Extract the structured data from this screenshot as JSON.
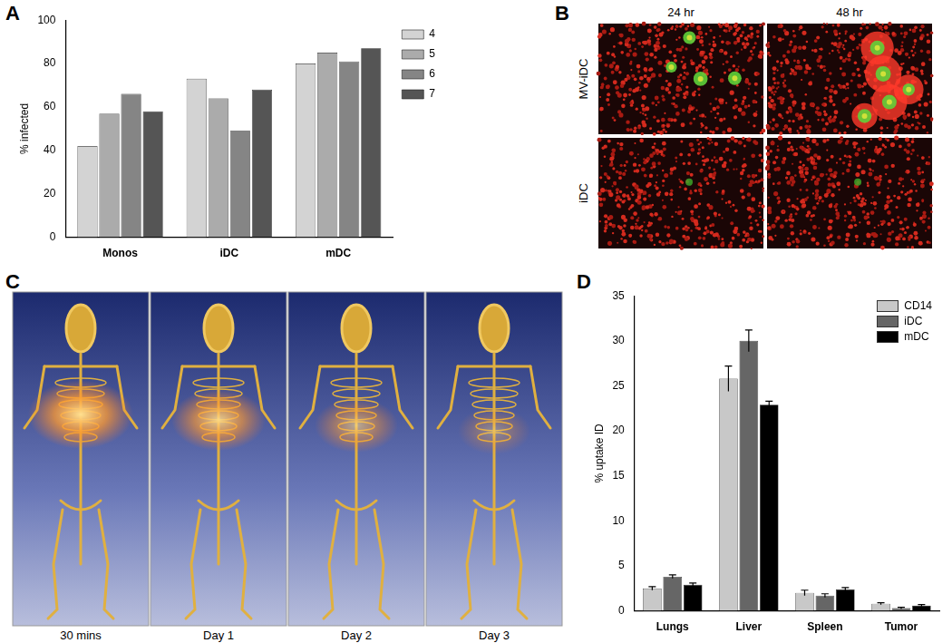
{
  "panel_labels": [
    "A",
    "B",
    "C",
    "D"
  ],
  "chart_data": [
    {
      "type": "bar",
      "categories": [
        "Monos",
        "iDC",
        "mDC"
      ],
      "y_label": "% infected",
      "ylim": [
        0,
        100
      ],
      "yticks": [
        0,
        20,
        40,
        60,
        80,
        100
      ],
      "grid": false,
      "legend": "right",
      "series": [
        {
          "name": "4",
          "color": "#d3d3d3",
          "values": [
            42,
            73,
            80
          ]
        },
        {
          "name": "5",
          "color": "#ababab",
          "values": [
            57,
            64,
            85
          ]
        },
        {
          "name": "6",
          "color": "#858585",
          "values": [
            66,
            49,
            81
          ]
        },
        {
          "name": "7",
          "color": "#555555",
          "values": [
            58,
            68,
            87
          ]
        }
      ]
    },
    {
      "type": "bar",
      "categories": [
        "Lungs",
        "Liver",
        "Spleen",
        "Tumor"
      ],
      "y_label": "% uptake ID",
      "ylim": [
        0,
        35
      ],
      "yticks": [
        0,
        5,
        10,
        15,
        20,
        25,
        30,
        35
      ],
      "grid": false,
      "legend": "upper right",
      "series": [
        {
          "name": "CD14",
          "color": "#c8c8c8",
          "values": [
            2.5,
            25.8,
            2.0,
            0.8
          ],
          "errors": [
            0.2,
            1.4,
            0.3,
            0.1
          ]
        },
        {
          "name": "iDC",
          "color": "#666666",
          "values": [
            3.8,
            30.0,
            1.7,
            0.3
          ],
          "errors": [
            0.2,
            1.2,
            0.2,
            0.1
          ]
        },
        {
          "name": "mDC",
          "color": "#000000",
          "values": [
            2.9,
            22.9,
            2.4,
            0.6
          ],
          "errors": [
            0.2,
            0.4,
            0.2,
            0.1
          ]
        }
      ]
    }
  ],
  "microscopy": {
    "columns": [
      "24 hr",
      "48 hr"
    ],
    "rows": [
      "MV-iDC",
      "iDC"
    ]
  },
  "imaging": {
    "captions": [
      "30 mins",
      "Day 1",
      "Day 2",
      "Day 3"
    ]
  }
}
